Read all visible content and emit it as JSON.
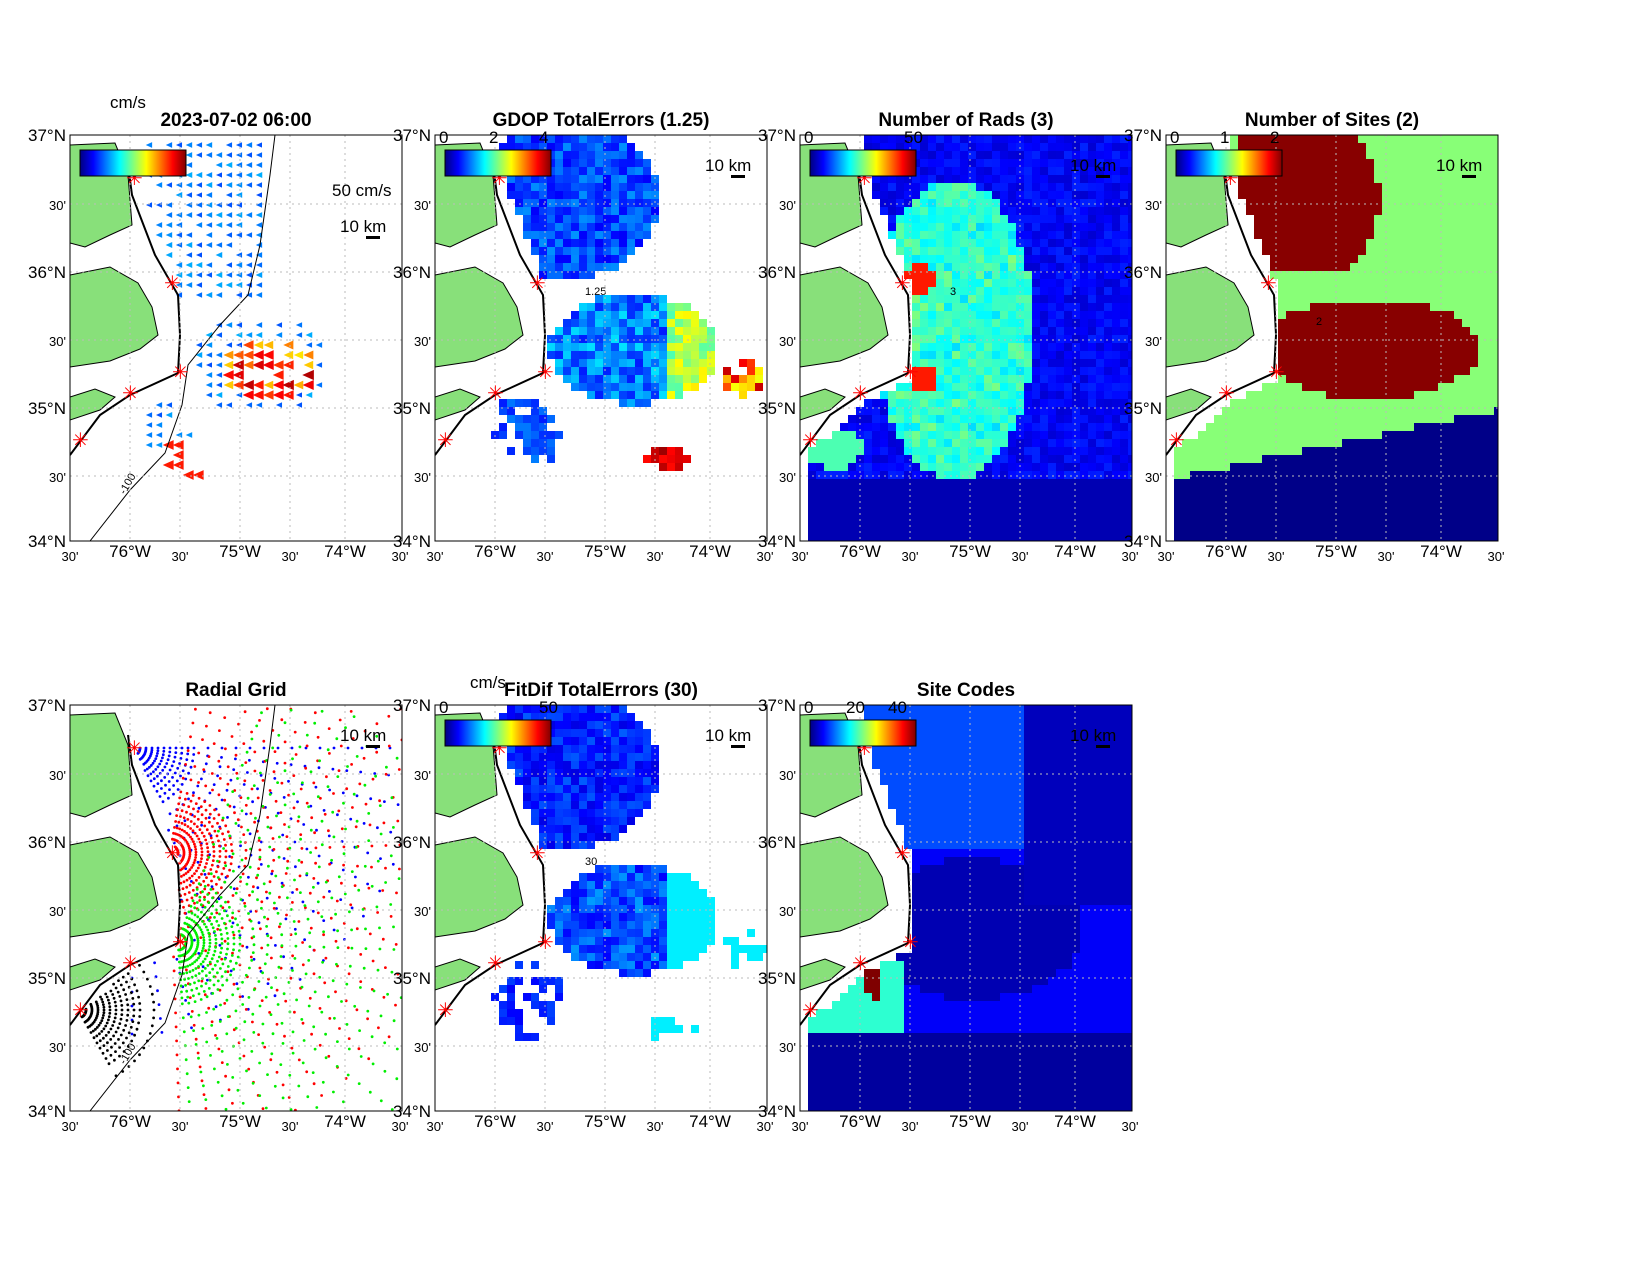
{
  "figure": {
    "lat_labels": [
      "37°N",
      "30'",
      "36°N",
      "30'",
      "35°N",
      "30'",
      "34°N"
    ],
    "lon_labels": [
      "30'",
      "76°W",
      "30'",
      "75°W",
      "30'",
      "74°W",
      "30'"
    ],
    "scale_km": "10 km",
    "colormap": "jet",
    "land_color": "#88e07a",
    "site_marker_color": "#ff0000",
    "grid": "dotted"
  },
  "panels": [
    {
      "title": "2023-07-02 06:00",
      "cbar_unit": "cm/s",
      "cbar_ticks": [],
      "vector_scale": "50 cm/s",
      "contour_label": "-100",
      "content": "current vectors"
    },
    {
      "title": "GDOP TotalErrors (1.25)",
      "cbar_ticks": [
        "0",
        "2",
        "4"
      ],
      "contour_label": "1.25",
      "content": "heatmap"
    },
    {
      "title": "Number of Rads (3)",
      "cbar_ticks": [
        "0",
        "50"
      ],
      "contour_label": "3",
      "content": "heatmap"
    },
    {
      "title": "Number of Sites (2)",
      "cbar_ticks": [
        "0",
        "1",
        "2"
      ],
      "contour_label": "2",
      "content": "heatmap"
    },
    {
      "title": "Radial Grid",
      "contour_label": "-100",
      "content": "radial grid",
      "site_colors": [
        "#0000ff",
        "#ff0000",
        "#00ee00",
        "#000000"
      ]
    },
    {
      "title": "FitDif TotalErrors (30)",
      "cbar_unit": "cm/s",
      "cbar_ticks": [
        "0",
        "50"
      ],
      "contour_label": "30",
      "content": "heatmap"
    },
    {
      "title": "Site Codes",
      "cbar_ticks": [
        "0",
        "20",
        "40"
      ],
      "content": "heatmap"
    }
  ]
}
